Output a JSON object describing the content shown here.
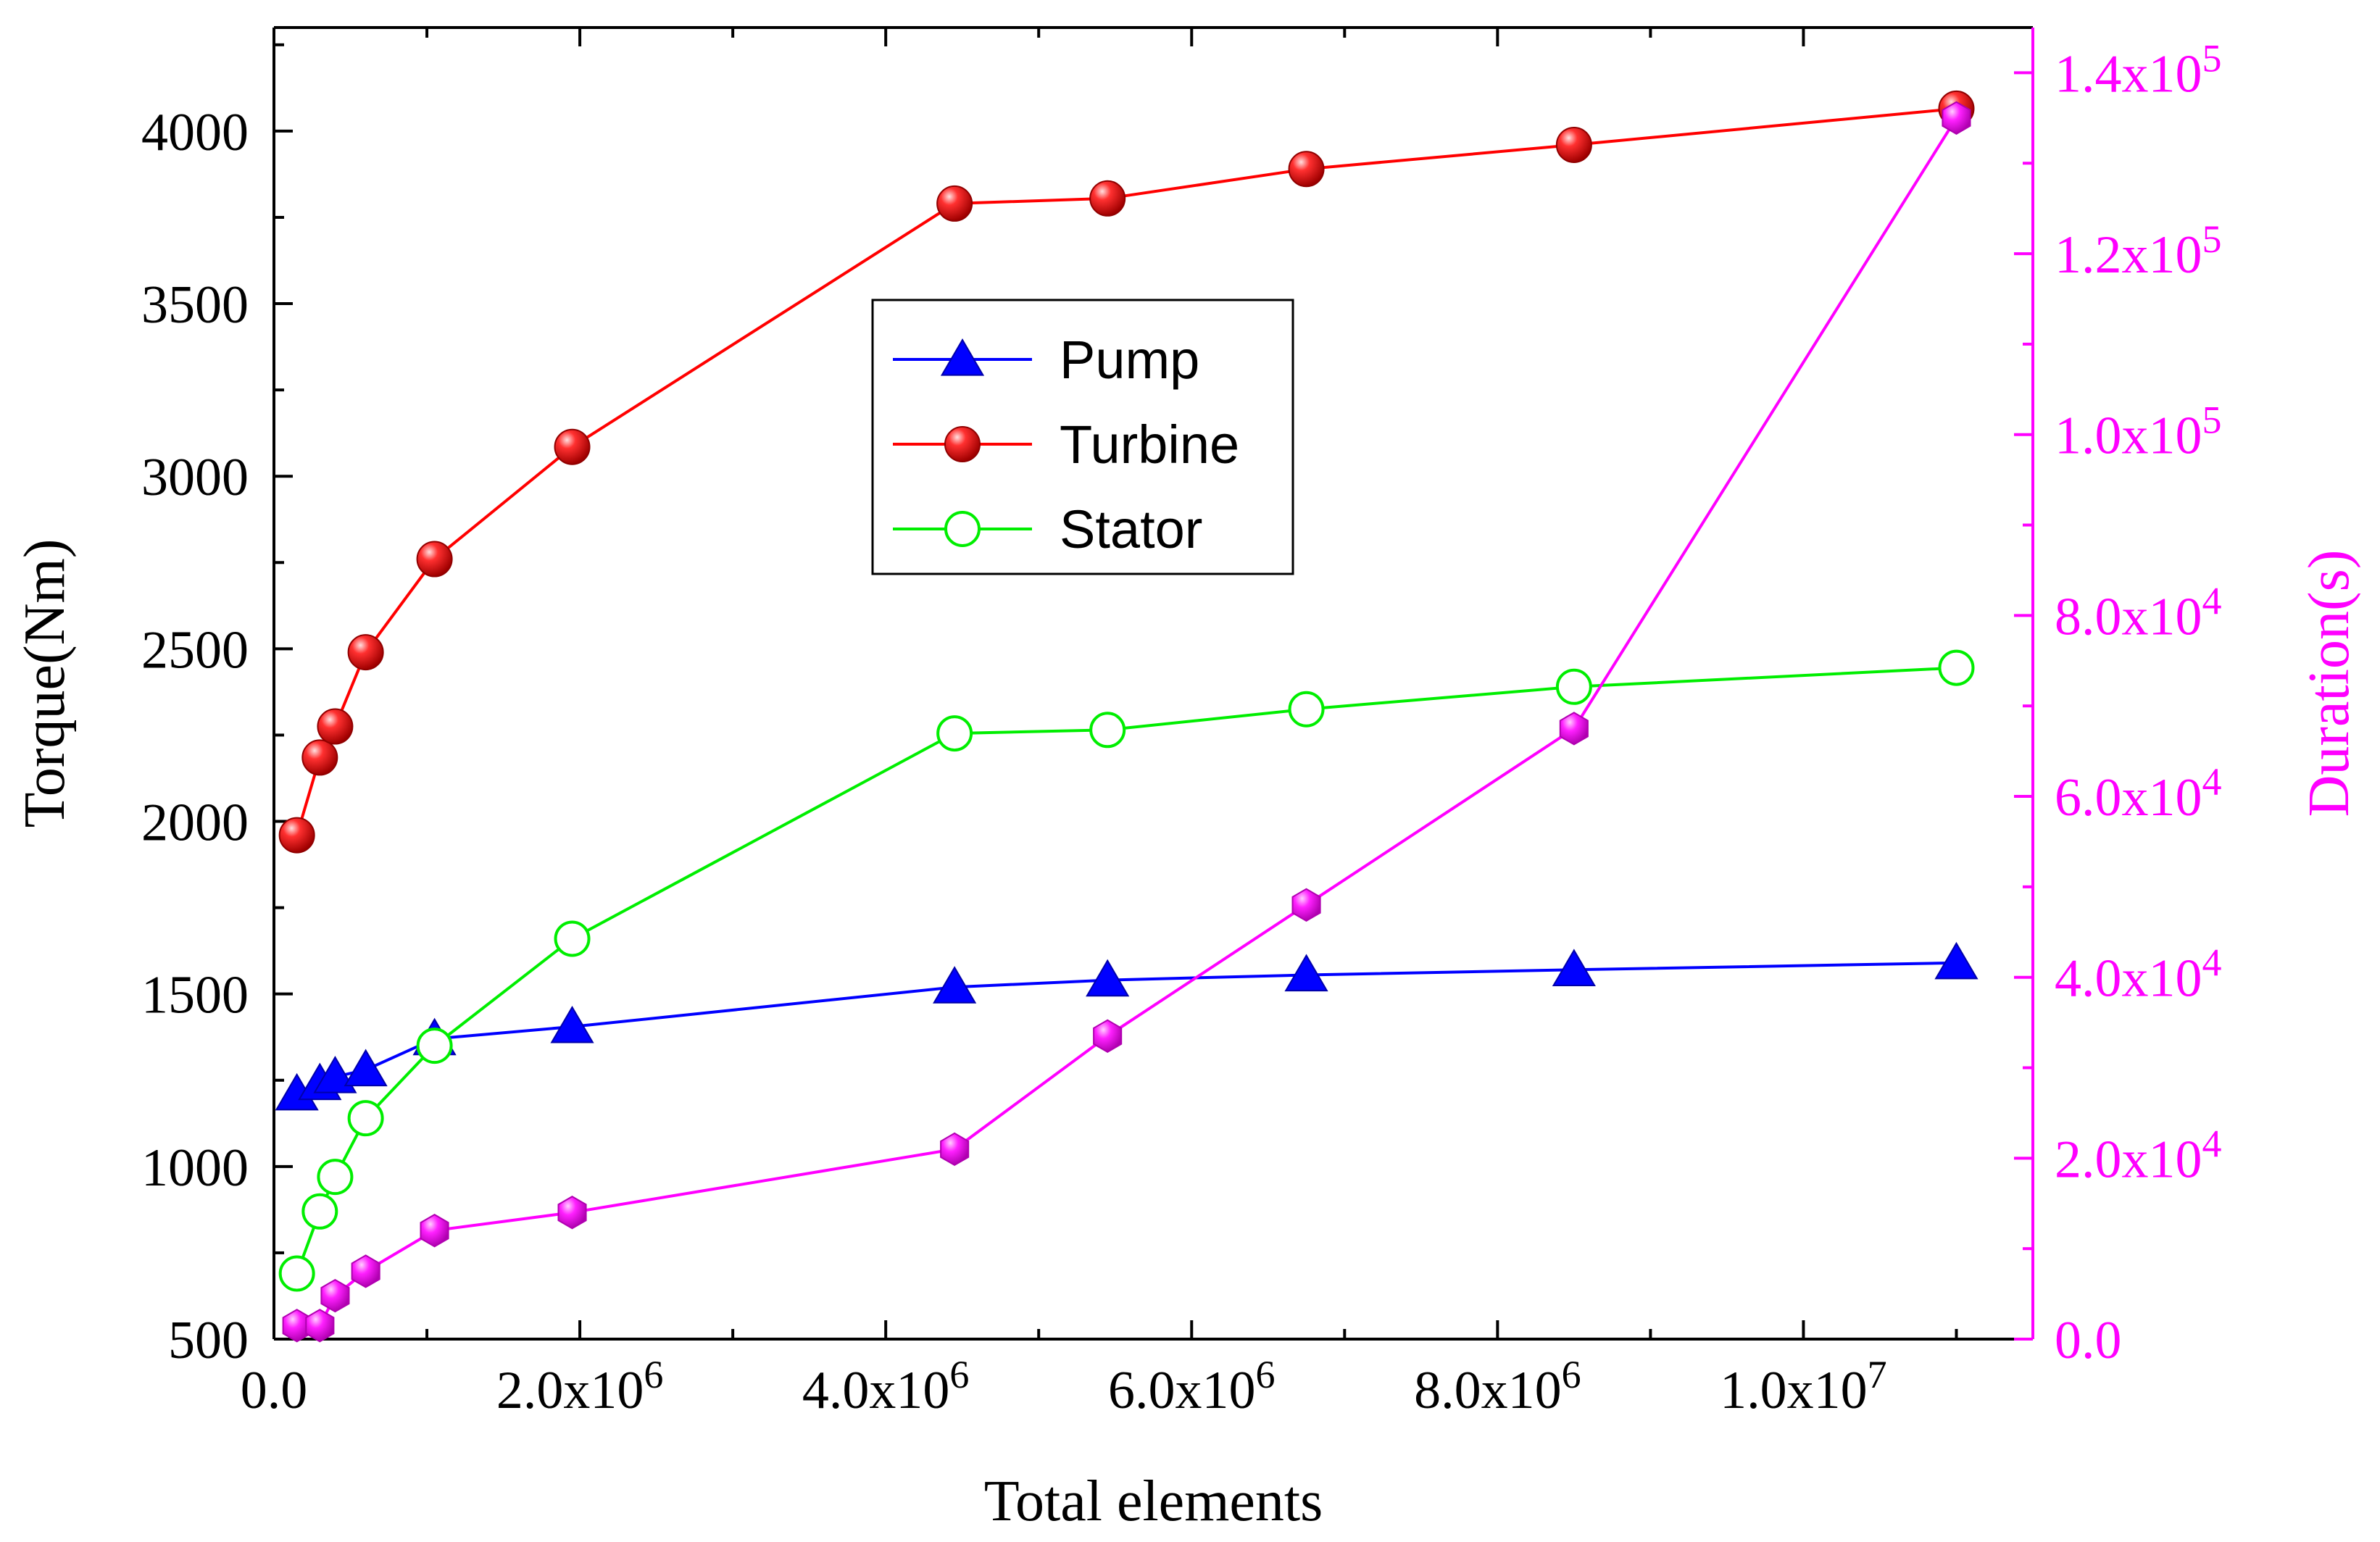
{
  "chart_data": {
    "type": "line",
    "title": "",
    "xlabel": "Total elements",
    "ylabel": "Torque(Nm)",
    "y2label": "Duration(s)",
    "xlim": [
      0,
      11500000
    ],
    "ylim": [
      500,
      4300
    ],
    "y2lim": [
      0,
      145000
    ],
    "x_ticks": [
      {
        "value": 0,
        "mantissa": "0.0",
        "exp": ""
      },
      {
        "value": 2000000,
        "mantissa": "2.0x10",
        "exp": "6"
      },
      {
        "value": 4000000,
        "mantissa": "4.0x10",
        "exp": "6"
      },
      {
        "value": 6000000,
        "mantissa": "6.0x10",
        "exp": "6"
      },
      {
        "value": 8000000,
        "mantissa": "8.0x10",
        "exp": "6"
      },
      {
        "value": 10000000,
        "mantissa": "1.0x10",
        "exp": "7"
      }
    ],
    "y_ticks": [
      500,
      1000,
      1500,
      2000,
      2500,
      3000,
      3500,
      4000
    ],
    "y2_ticks": [
      {
        "value": 0,
        "mantissa": "0.0",
        "exp": ""
      },
      {
        "value": 20000,
        "mantissa": "2.0x10",
        "exp": "4"
      },
      {
        "value": 40000,
        "mantissa": "4.0x10",
        "exp": "4"
      },
      {
        "value": 60000,
        "mantissa": "6.0x10",
        "exp": "4"
      },
      {
        "value": 80000,
        "mantissa": "8.0x10",
        "exp": "4"
      },
      {
        "value": 100000,
        "mantissa": "1.0x10",
        "exp": "5"
      },
      {
        "value": 120000,
        "mantissa": "1.2x10",
        "exp": "5"
      },
      {
        "value": 140000,
        "mantissa": "1.4x10",
        "exp": "5"
      }
    ],
    "x": [
      150000,
      300000,
      400000,
      600000,
      1050000,
      1950000,
      4450000,
      5450000,
      6750000,
      8500000,
      11000000
    ],
    "series": [
      {
        "name": "Pump",
        "axis": "left",
        "color": "#0000ff",
        "marker": "triangle",
        "values": [
          1210,
          1240,
          1260,
          1280,
          1370,
          1405,
          1520,
          1540,
          1555,
          1570,
          1590
        ]
      },
      {
        "name": "Turbine",
        "axis": "left",
        "color": "#ff0000",
        "marker": "ball",
        "values": [
          1960,
          2185,
          2275,
          2490,
          2760,
          3085,
          3790,
          3805,
          3890,
          3960,
          4065
        ]
      },
      {
        "name": "Stator",
        "axis": "left",
        "color": "#00ee00",
        "marker": "open-circle",
        "values": [
          690,
          870,
          970,
          1140,
          1350,
          1660,
          2255,
          2265,
          2325,
          2390,
          2445
        ]
      },
      {
        "name": "Duration",
        "axis": "right",
        "color": "#ff00ff",
        "marker": "hexagon",
        "values": [
          1500,
          1500,
          4800,
          7500,
          12000,
          14000,
          21000,
          33500,
          48000,
          67500,
          135000
        ]
      }
    ],
    "legend": {
      "position": "center",
      "items": [
        "Pump",
        "Turbine",
        "Stator"
      ]
    }
  }
}
